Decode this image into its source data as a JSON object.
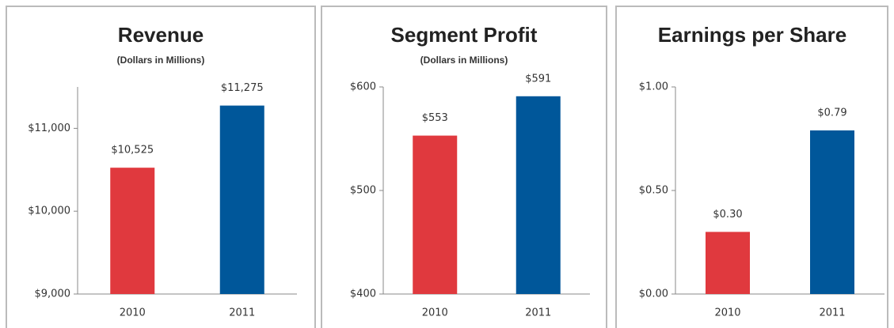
{
  "chart_data": [
    {
      "type": "bar",
      "title": "Revenue",
      "subtitle": "(Dollars in Millions)",
      "categories": [
        "2010",
        "2011"
      ],
      "values": [
        10525,
        11275
      ],
      "value_labels": [
        "$10,525",
        "$11,275"
      ],
      "colors": [
        "#e0393e",
        "#00579a"
      ],
      "ylim": [
        9000,
        11500
      ],
      "yticks": [
        {
          "value": 9000,
          "label": "$9,000"
        },
        {
          "value": 10000,
          "label": "$10,000"
        },
        {
          "value": 11000,
          "label": "$11,000"
        }
      ]
    },
    {
      "type": "bar",
      "title": "Segment Profit",
      "subtitle": "(Dollars in Millions)",
      "categories": [
        "2010",
        "2011"
      ],
      "values": [
        553,
        591
      ],
      "value_labels": [
        "$553",
        "$591"
      ],
      "colors": [
        "#e0393e",
        "#00579a"
      ],
      "ylim": [
        400,
        600
      ],
      "yticks": [
        {
          "value": 400,
          "label": "$400"
        },
        {
          "value": 500,
          "label": "$500"
        },
        {
          "value": 600,
          "label": "$600"
        }
      ]
    },
    {
      "type": "bar",
      "title": "Earnings per Share",
      "categories": [
        "2010",
        "2011"
      ],
      "values": [
        0.3,
        0.79
      ],
      "value_labels": [
        "$0.30",
        "$0.79"
      ],
      "colors": [
        "#e0393e",
        "#00579a"
      ],
      "ylim": [
        0,
        1
      ],
      "yticks": [
        {
          "value": 0,
          "label": "$0.00"
        },
        {
          "value": 0.5,
          "label": "$0.50"
        },
        {
          "value": 1,
          "label": "$1.00"
        }
      ]
    }
  ]
}
